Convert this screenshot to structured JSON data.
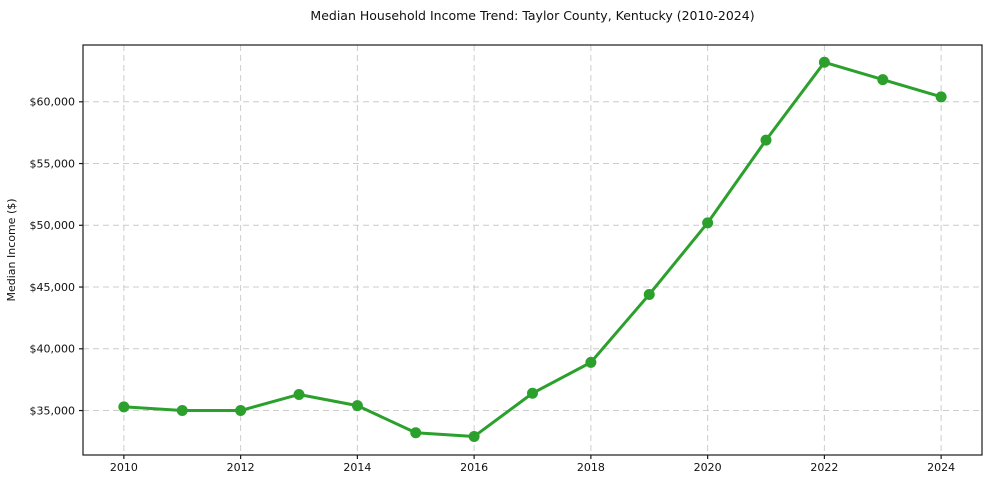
{
  "page": {
    "background": "#ffffff"
  },
  "chart_data": {
    "type": "line",
    "title": "Median Household Income Trend: Taylor County, Kentucky (2010-2024)",
    "xlabel": "",
    "ylabel": "Median Income ($)",
    "x": [
      2010,
      2011,
      2012,
      2013,
      2014,
      2015,
      2016,
      2017,
      2018,
      2019,
      2020,
      2021,
      2022,
      2023,
      2024
    ],
    "values": [
      35300,
      35000,
      35000,
      36300,
      35400,
      33200,
      32900,
      36400,
      38900,
      44400,
      50200,
      56900,
      63200,
      61800,
      60400
    ],
    "series_name": "Median Household Income",
    "xtick_values": [
      2010,
      2012,
      2014,
      2016,
      2018,
      2020,
      2022,
      2024
    ],
    "xtick_labels": [
      "2010",
      "2012",
      "2014",
      "2016",
      "2018",
      "2020",
      "2022",
      "2024"
    ],
    "ytick_values": [
      35000,
      40000,
      45000,
      50000,
      55000,
      60000
    ],
    "ytick_labels": [
      "$35,000",
      "$40,000",
      "$45,000",
      "$50,000",
      "$55,000",
      "$60,000"
    ],
    "xlim": [
      2009.3,
      2024.7
    ],
    "ylim": [
      31400,
      64600
    ],
    "grid": true,
    "grid_style": "dashed",
    "legend_position": "none",
    "line_color": "#2ca02c",
    "marker": "circle",
    "grid_color": "#cccccc",
    "axis_color": "#1a1a1a",
    "text_color": "#111111"
  }
}
